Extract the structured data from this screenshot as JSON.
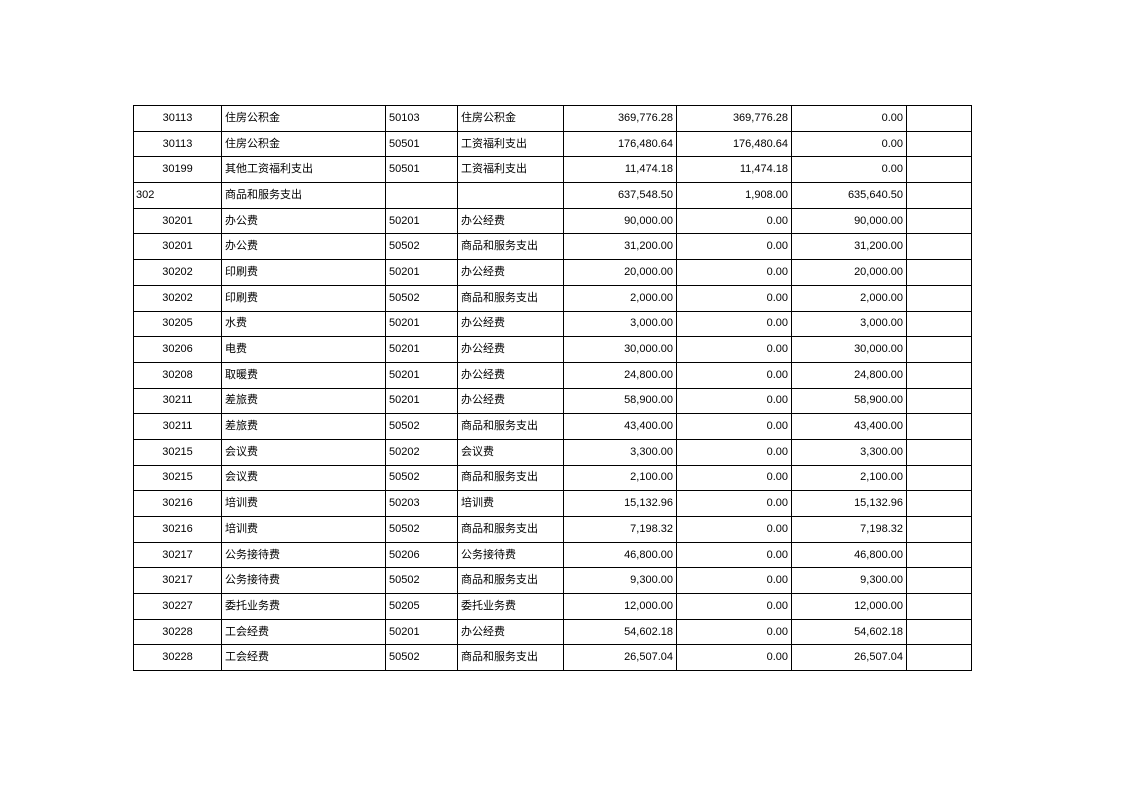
{
  "colors": {
    "page_background": "#ffffff",
    "table_border": "#000000",
    "text": "#000000"
  },
  "table": {
    "rows": [
      [
        "30113",
        "住房公积金",
        "50103",
        "住房公积金",
        "369,776.28",
        "369,776.28",
        "0.00",
        ""
      ],
      [
        "30113",
        "住房公积金",
        "50501",
        "工资福利支出",
        "176,480.64",
        "176,480.64",
        "0.00",
        ""
      ],
      [
        "30199",
        "其他工资福利支出",
        "50501",
        "工资福利支出",
        "11,474.18",
        "11,474.18",
        "0.00",
        ""
      ],
      [
        "302",
        "商品和服务支出",
        "",
        "",
        "637,548.50",
        "1,908.00",
        "635,640.50",
        ""
      ],
      [
        "30201",
        "办公费",
        "50201",
        "办公经费",
        "90,000.00",
        "0.00",
        "90,000.00",
        ""
      ],
      [
        "30201",
        "办公费",
        "50502",
        "商品和服务支出",
        "31,200.00",
        "0.00",
        "31,200.00",
        ""
      ],
      [
        "30202",
        "印刷费",
        "50201",
        "办公经费",
        "20,000.00",
        "0.00",
        "20,000.00",
        ""
      ],
      [
        "30202",
        "印刷费",
        "50502",
        "商品和服务支出",
        "2,000.00",
        "0.00",
        "2,000.00",
        ""
      ],
      [
        "30205",
        "水费",
        "50201",
        "办公经费",
        "3,000.00",
        "0.00",
        "3,000.00",
        ""
      ],
      [
        "30206",
        "电费",
        "50201",
        "办公经费",
        "30,000.00",
        "0.00",
        "30,000.00",
        ""
      ],
      [
        "30208",
        "取暖费",
        "50201",
        "办公经费",
        "24,800.00",
        "0.00",
        "24,800.00",
        ""
      ],
      [
        "30211",
        "差旅费",
        "50201",
        "办公经费",
        "58,900.00",
        "0.00",
        "58,900.00",
        ""
      ],
      [
        "30211",
        "差旅费",
        "50502",
        "商品和服务支出",
        "43,400.00",
        "0.00",
        "43,400.00",
        ""
      ],
      [
        "30215",
        "会议费",
        "50202",
        "会议费",
        "3,300.00",
        "0.00",
        "3,300.00",
        ""
      ],
      [
        "30215",
        "会议费",
        "50502",
        "商品和服务支出",
        "2,100.00",
        "0.00",
        "2,100.00",
        ""
      ],
      [
        "30216",
        "培训费",
        "50203",
        "培训费",
        "15,132.96",
        "0.00",
        "15,132.96",
        ""
      ],
      [
        "30216",
        "培训费",
        "50502",
        "商品和服务支出",
        "7,198.32",
        "0.00",
        "7,198.32",
        ""
      ],
      [
        "30217",
        "公务接待费",
        "50206",
        "公务接待费",
        "46,800.00",
        "0.00",
        "46,800.00",
        ""
      ],
      [
        "30217",
        "公务接待费",
        "50502",
        "商品和服务支出",
        "9,300.00",
        "0.00",
        "9,300.00",
        ""
      ],
      [
        "30227",
        "委托业务费",
        "50205",
        "委托业务费",
        "12,000.00",
        "0.00",
        "12,000.00",
        ""
      ],
      [
        "30228",
        "工会经费",
        "50201",
        "办公经费",
        "54,602.18",
        "0.00",
        "54,602.18",
        ""
      ],
      [
        "30228",
        "工会经费",
        "50502",
        "商品和服务支出",
        "26,507.04",
        "0.00",
        "26,507.04",
        ""
      ]
    ]
  }
}
